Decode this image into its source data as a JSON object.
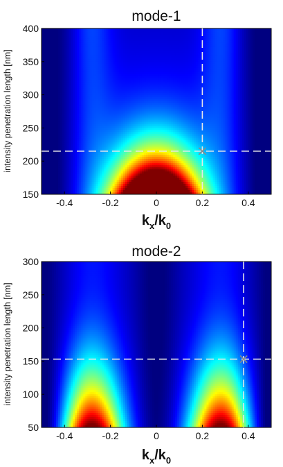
{
  "chart_data": [
    {
      "type": "heatmap",
      "title": "mode-1",
      "xlabel": "k",
      "xlabel_sub": "x",
      "xlabel_tail": "/k",
      "xlabel_tail_sub": "0",
      "ylabel": "intensity penetration length [nm]",
      "xlim": [
        -0.5,
        0.5
      ],
      "ylim": [
        150,
        400
      ],
      "xticks": [
        -0.4,
        -0.2,
        0,
        0.2,
        0.4
      ],
      "xtick_labels": [
        "-0.4",
        "-0.2",
        "0",
        "0.2",
        "0.4"
      ],
      "yticks": [
        150,
        200,
        250,
        300,
        350,
        400
      ],
      "ytick_labels": [
        "150",
        "200",
        "250",
        "300",
        "350",
        "400"
      ],
      "colormap": "jet",
      "marker": {
        "x": 0.2,
        "y": 215
      },
      "crosshair": {
        "x": 0.2,
        "y": 215
      },
      "crosshair_color": "#e8e8e8",
      "marker_color": "#8a8a8a"
    },
    {
      "type": "heatmap",
      "title": "mode-2",
      "xlabel": "k",
      "xlabel_sub": "x",
      "xlabel_tail": "/k",
      "xlabel_tail_sub": "0",
      "ylabel": "intensity penetration length [nm]",
      "xlim": [
        -0.5,
        0.5
      ],
      "ylim": [
        50,
        300
      ],
      "xticks": [
        -0.4,
        -0.2,
        0,
        0.2,
        0.4
      ],
      "xtick_labels": [
        "-0.4",
        "-0.2",
        "0",
        "0.2",
        "0.4"
      ],
      "yticks": [
        50,
        100,
        150,
        200,
        250,
        300
      ],
      "ytick_labels": [
        "50",
        "100",
        "150",
        "200",
        "250",
        "300"
      ],
      "colormap": "jet",
      "marker": {
        "x": 0.38,
        "y": 153
      },
      "crosshair": {
        "x": 0.38,
        "y": 153
      },
      "crosshair_color": "#e8e8e8",
      "marker_color": "#8a8a8a"
    }
  ]
}
